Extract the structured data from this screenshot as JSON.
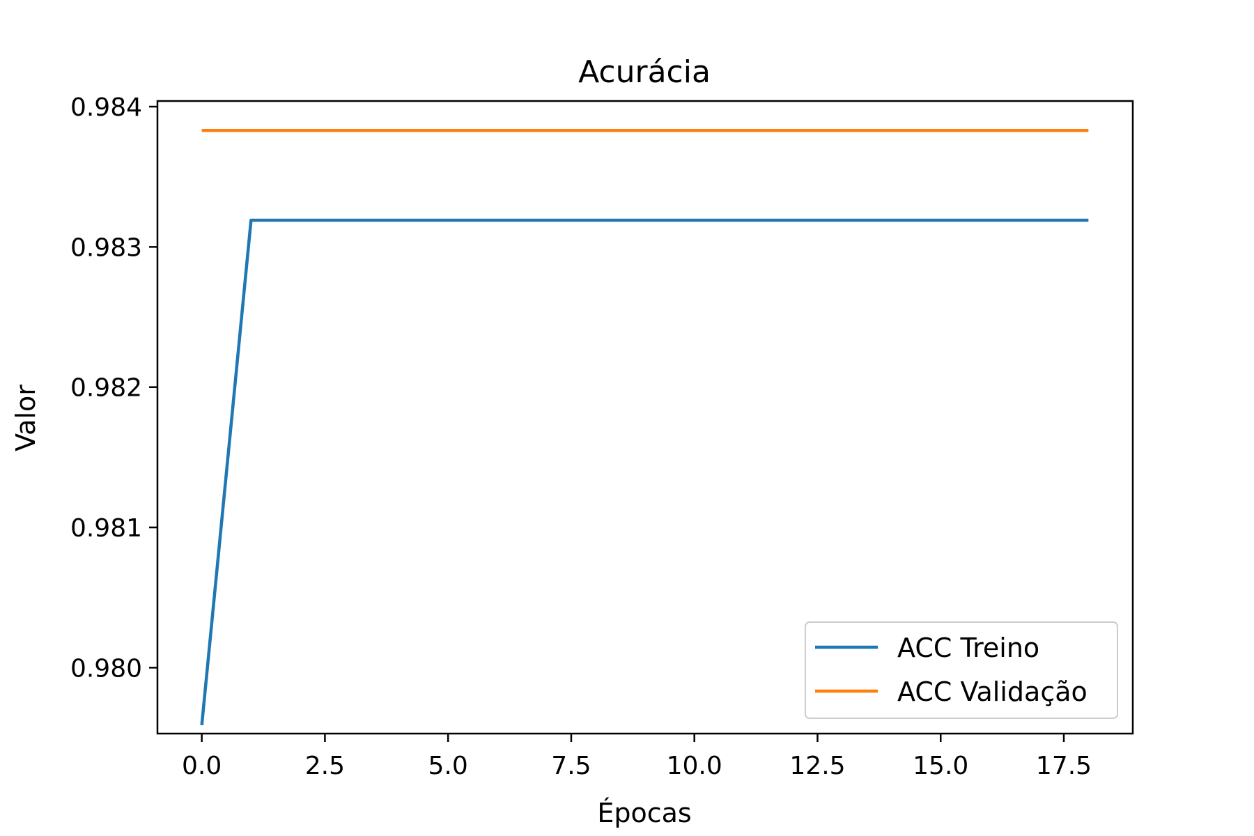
{
  "chart_data": {
    "type": "line",
    "title": "Acurácia",
    "xlabel": "Épocas",
    "ylabel": "Valor",
    "x": [
      0,
      1,
      2,
      3,
      4,
      5,
      6,
      7,
      8,
      9,
      10,
      11,
      12,
      13,
      14,
      15,
      16,
      17,
      18
    ],
    "series": [
      {
        "name": "ACC Treino",
        "color": "#1f77b4",
        "values": [
          0.97959,
          0.98319,
          0.98319,
          0.98319,
          0.98319,
          0.98319,
          0.98319,
          0.98319,
          0.98319,
          0.98319,
          0.98319,
          0.98319,
          0.98319,
          0.98319,
          0.98319,
          0.98319,
          0.98319,
          0.98319,
          0.98319
        ]
      },
      {
        "name": "ACC Validação",
        "color": "#ff7f0e",
        "values": [
          0.98383,
          0.98383,
          0.98383,
          0.98383,
          0.98383,
          0.98383,
          0.98383,
          0.98383,
          0.98383,
          0.98383,
          0.98383,
          0.98383,
          0.98383,
          0.98383,
          0.98383,
          0.98383,
          0.98383,
          0.98383,
          0.98383
        ]
      }
    ],
    "xlim": [
      -0.9,
      18.9
    ],
    "ylim": [
      0.97953,
      0.98404
    ],
    "xticks": [
      0.0,
      2.5,
      5.0,
      7.5,
      10.0,
      12.5,
      15.0,
      17.5
    ],
    "xtick_labels": [
      "0.0",
      "2.5",
      "5.0",
      "7.5",
      "10.0",
      "12.5",
      "15.0",
      "17.5"
    ],
    "yticks": [
      0.98,
      0.981,
      0.982,
      0.983,
      0.984
    ],
    "ytick_labels": [
      "0.980",
      "0.981",
      "0.982",
      "0.983",
      "0.984"
    ],
    "grid": false,
    "legend_position": "lower-right"
  }
}
